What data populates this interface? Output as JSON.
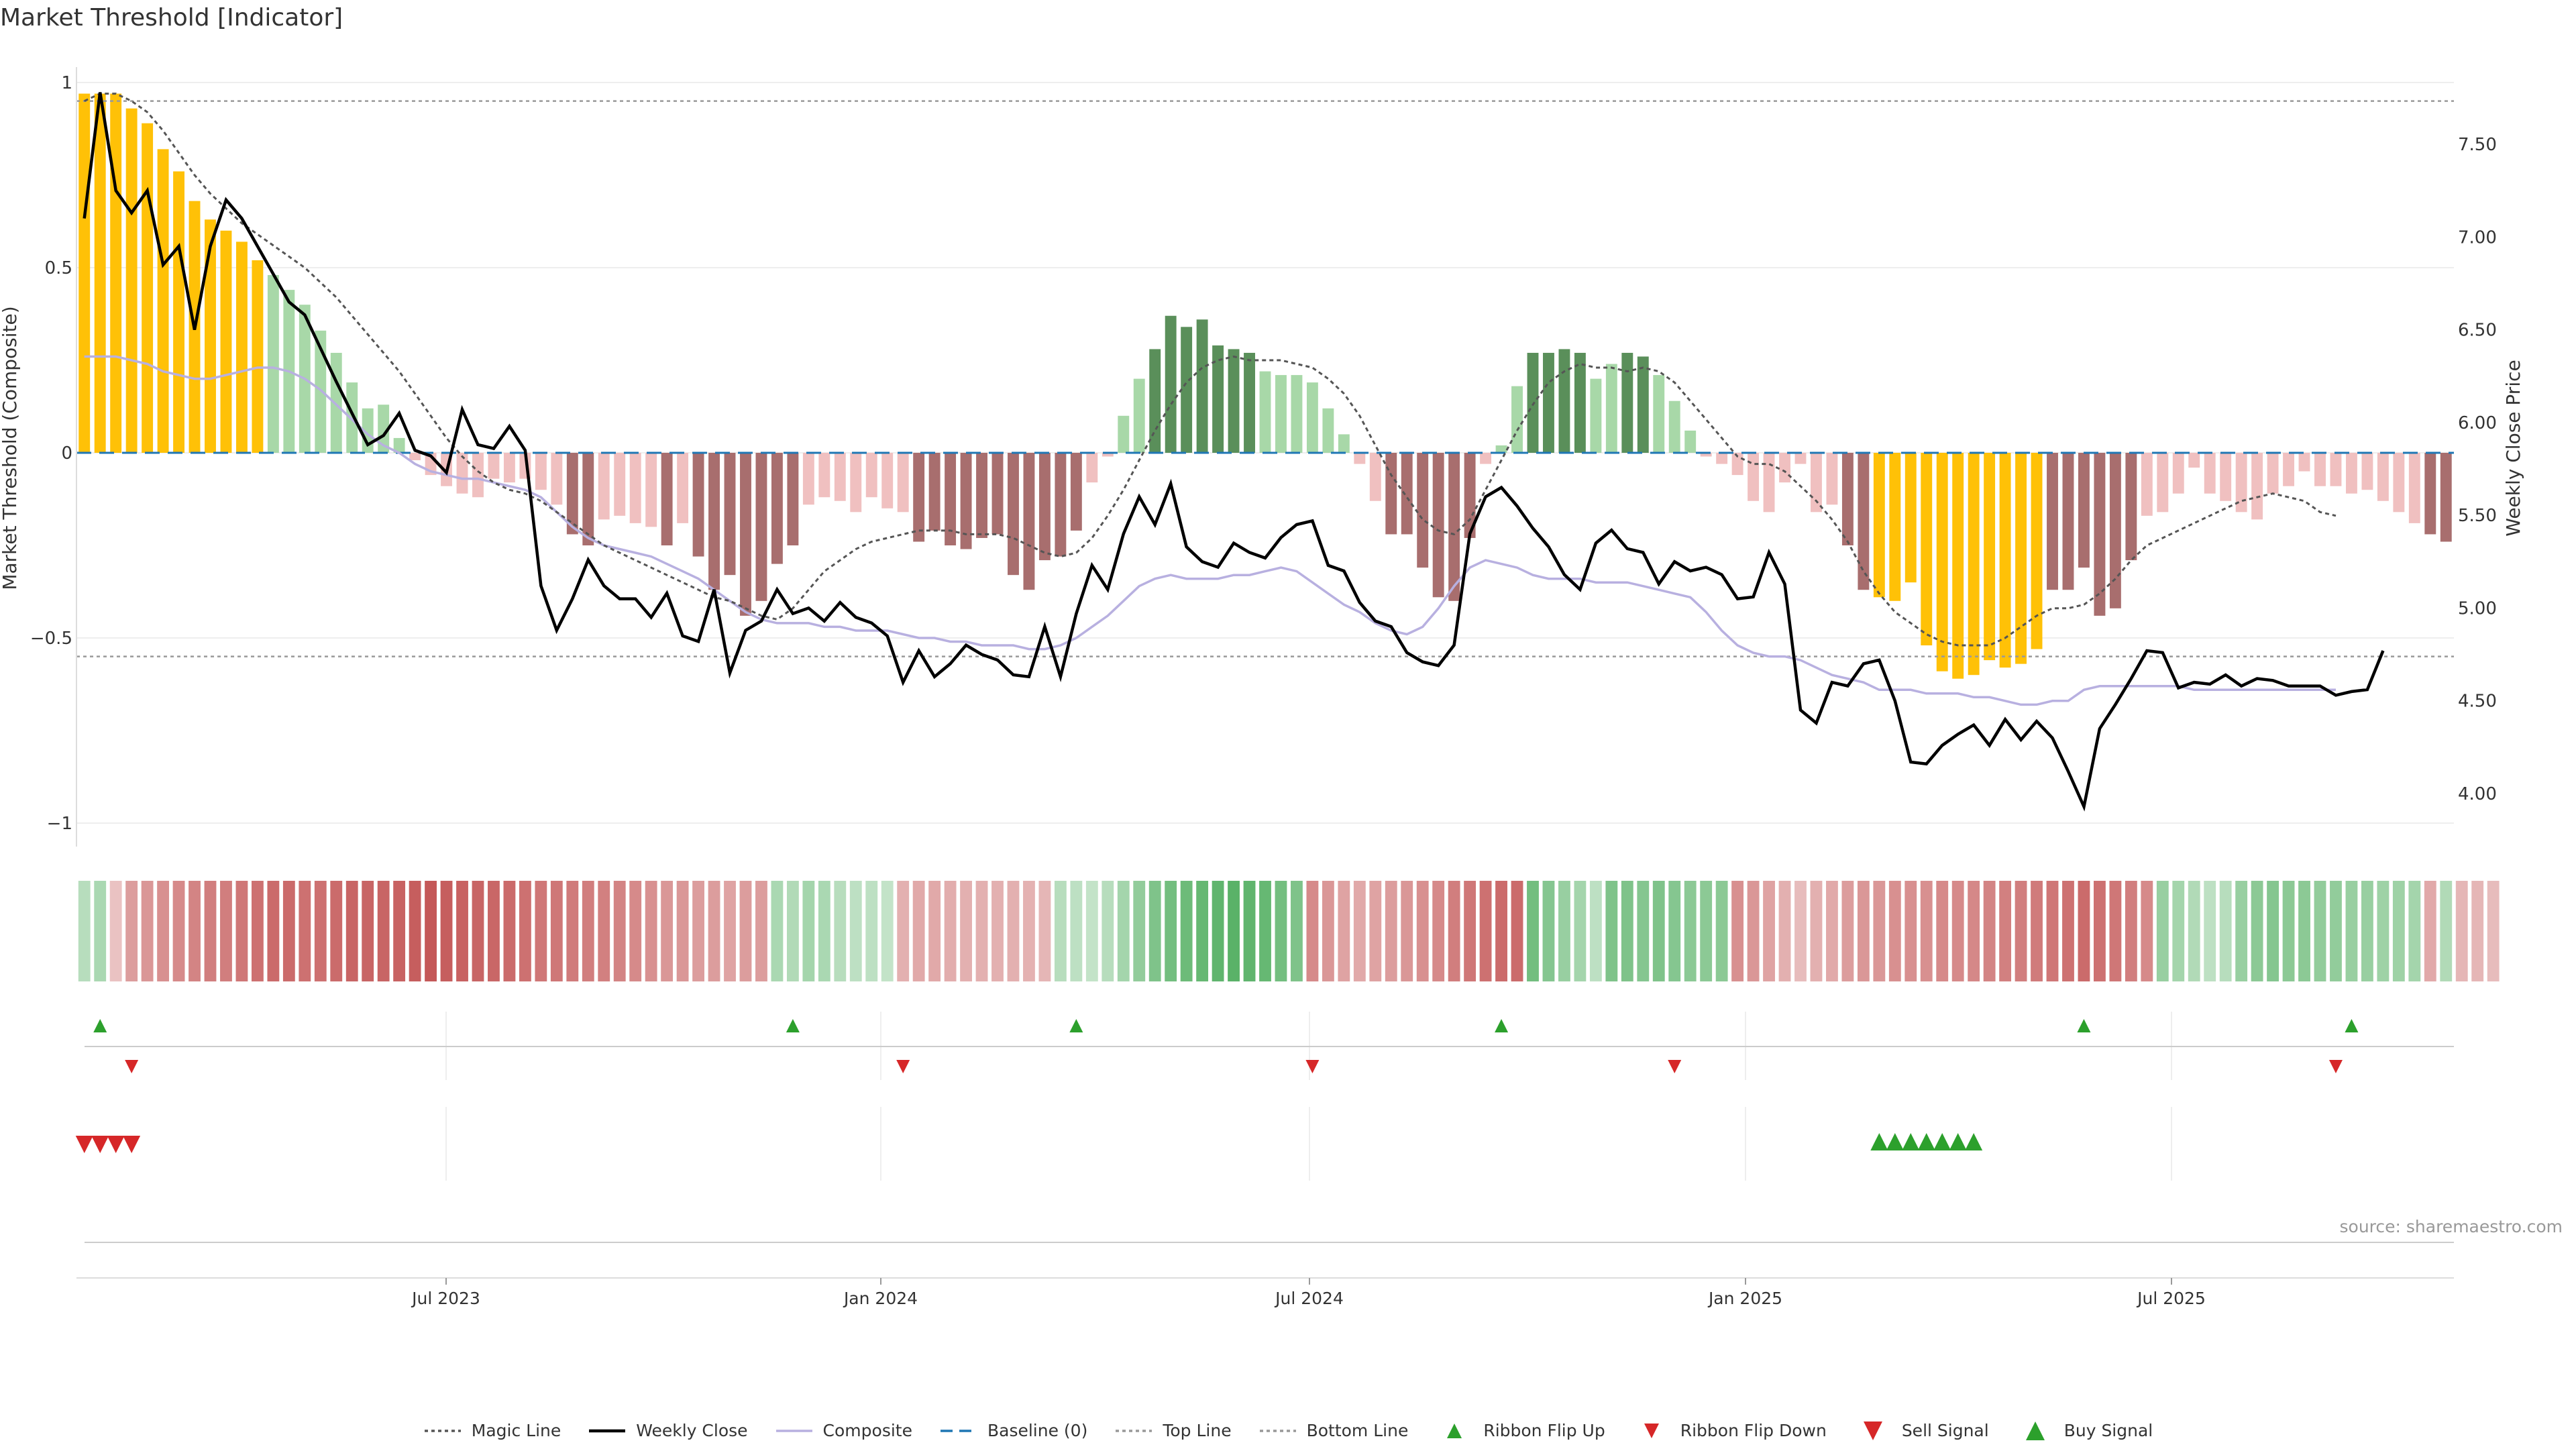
{
  "chart_data": {
    "type": "bar",
    "title": "Market Threshold [Indicator]",
    "ylabel_left": "Market Threshold (Composite)",
    "ylabel_right": "Weekly Close Price",
    "source": "source: sharemaestro.com",
    "ylim_left": [
      -1,
      1
    ],
    "yticks_left": [
      "1",
      "0.5",
      "0",
      "−0.5",
      "−1"
    ],
    "ylim_right": [
      3.85,
      7.8
    ],
    "yticks_right": [
      "7.50",
      "7.00",
      "6.50",
      "6.00",
      "5.50",
      "5.00",
      "4.50",
      "4.00"
    ],
    "xticks": [
      "Jul 2023",
      "Jan 2024",
      "Jul 2024",
      "Jan 2025",
      "Jul 2025"
    ],
    "top_line": 0.95,
    "bottom_line": -0.55,
    "composite_bars": [
      0.97,
      0.97,
      0.97,
      0.93,
      0.89,
      0.82,
      0.76,
      0.68,
      0.63,
      0.6,
      0.57,
      0.52,
      0.48,
      0.44,
      0.4,
      0.33,
      0.27,
      0.19,
      0.12,
      0.13,
      0.04,
      -0.02,
      -0.06,
      -0.09,
      -0.11,
      -0.12,
      -0.07,
      -0.08,
      -0.07,
      -0.1,
      -0.14,
      -0.22,
      -0.25,
      -0.18,
      -0.17,
      -0.19,
      -0.2,
      -0.25,
      -0.19,
      -0.28,
      -0.37,
      -0.33,
      -0.44,
      -0.4,
      -0.3,
      -0.25,
      -0.14,
      -0.12,
      -0.13,
      -0.16,
      -0.12,
      -0.15,
      -0.16,
      -0.24,
      -0.21,
      -0.25,
      -0.26,
      -0.23,
      -0.22,
      -0.33,
      -0.37,
      -0.29,
      -0.28,
      -0.21,
      -0.08,
      -0.01,
      0.1,
      0.2,
      0.28,
      0.37,
      0.34,
      0.36,
      0.29,
      0.28,
      0.27,
      0.22,
      0.21,
      0.21,
      0.19,
      0.12,
      0.05,
      -0.03,
      -0.13,
      -0.22,
      -0.22,
      -0.31,
      -0.39,
      -0.4,
      -0.23,
      -0.03,
      0.02,
      0.18,
      0.27,
      0.27,
      0.28,
      0.27,
      0.2,
      0.24,
      0.27,
      0.26,
      0.21,
      0.14,
      0.06,
      -0.01,
      -0.03,
      -0.06,
      -0.13,
      -0.16,
      -0.08,
      -0.03,
      -0.16,
      -0.14,
      -0.25,
      -0.37,
      -0.39,
      -0.4,
      -0.35,
      -0.52,
      -0.59,
      -0.61,
      -0.6,
      -0.56,
      -0.58,
      -0.57,
      -0.53,
      -0.37,
      -0.37,
      -0.31,
      -0.44,
      -0.42,
      -0.29,
      -0.17,
      -0.16,
      -0.11,
      -0.04,
      -0.11,
      -0.13,
      -0.16,
      -0.18,
      -0.11,
      -0.09,
      -0.05,
      -0.09,
      -0.09,
      -0.11,
      -0.1,
      -0.13,
      -0.16,
      -0.19,
      -0.22,
      -0.24
    ],
    "bar_colors": {
      "strong_pos": "#ffc107",
      "pos": "#a8d8a8",
      "pos_dark": "#5a8f5a",
      "neg": "#f0c0c0",
      "neg_dark": "#a86e6e"
    },
    "weekly_close": [
      7.1,
      7.78,
      7.25,
      7.13,
      7.25,
      6.85,
      6.95,
      6.5,
      6.95,
      7.2,
      7.1,
      6.95,
      6.8,
      6.65,
      6.58,
      6.4,
      6.22,
      6.05,
      5.88,
      5.93,
      6.05,
      5.85,
      5.82,
      5.73,
      6.07,
      5.88,
      5.86,
      5.98,
      5.85,
      5.12,
      4.88,
      5.05,
      5.26,
      5.12,
      5.05,
      5.05,
      4.95,
      5.08,
      4.85,
      4.82,
      5.1,
      4.65,
      4.88,
      4.93,
      5.1,
      4.97,
      5.0,
      4.93,
      5.03,
      4.95,
      4.92,
      4.85,
      4.6,
      4.77,
      4.63,
      4.7,
      4.8,
      4.75,
      4.72,
      4.64,
      4.63,
      4.9,
      4.63,
      4.97,
      5.23,
      5.1,
      5.4,
      5.6,
      5.45,
      5.67,
      5.33,
      5.25,
      5.22,
      5.35,
      5.3,
      5.27,
      5.38,
      5.45,
      5.47,
      5.23,
      5.2,
      5.03,
      4.93,
      4.9,
      4.76,
      4.71,
      4.69,
      4.8,
      5.4,
      5.6,
      5.65,
      5.55,
      5.43,
      5.33,
      5.18,
      5.1,
      5.35,
      5.42,
      5.32,
      5.3,
      5.13,
      5.25,
      5.2,
      5.22,
      5.18,
      5.05,
      5.06,
      5.3,
      5.13,
      4.45,
      4.38,
      4.6,
      4.58,
      4.7,
      4.72,
      4.5,
      4.17,
      4.16,
      4.26,
      4.32,
      4.37,
      4.26,
      4.4,
      4.29,
      4.39,
      4.3,
      4.12,
      3.93,
      4.35,
      4.48,
      4.62,
      4.77,
      4.76,
      4.57,
      4.6,
      4.59,
      4.64,
      4.58,
      4.62,
      4.61,
      4.58,
      4.58,
      4.58,
      4.53,
      4.55,
      4.56,
      4.77
    ],
    "magic_line": [
      0.95,
      0.97,
      0.97,
      0.95,
      0.92,
      0.87,
      0.81,
      0.75,
      0.7,
      0.66,
      0.62,
      0.59,
      0.56,
      0.53,
      0.5,
      0.46,
      0.42,
      0.37,
      0.32,
      0.27,
      0.22,
      0.16,
      0.1,
      0.04,
      -0.01,
      -0.05,
      -0.08,
      -0.1,
      -0.11,
      -0.13,
      -0.16,
      -0.19,
      -0.22,
      -0.25,
      -0.27,
      -0.29,
      -0.31,
      -0.33,
      -0.35,
      -0.37,
      -0.39,
      -0.4,
      -0.42,
      -0.44,
      -0.45,
      -0.42,
      -0.37,
      -0.32,
      -0.29,
      -0.26,
      -0.24,
      -0.23,
      -0.22,
      -0.21,
      -0.21,
      -0.21,
      -0.22,
      -0.22,
      -0.22,
      -0.23,
      -0.25,
      -0.27,
      -0.28,
      -0.27,
      -0.23,
      -0.17,
      -0.1,
      -0.02,
      0.06,
      0.13,
      0.19,
      0.23,
      0.25,
      0.26,
      0.25,
      0.25,
      0.25,
      0.24,
      0.23,
      0.2,
      0.16,
      0.1,
      0.02,
      -0.06,
      -0.12,
      -0.18,
      -0.21,
      -0.22,
      -0.18,
      -0.1,
      -0.02,
      0.06,
      0.13,
      0.19,
      0.22,
      0.24,
      0.23,
      0.23,
      0.22,
      0.23,
      0.22,
      0.19,
      0.14,
      0.09,
      0.04,
      -0.01,
      -0.03,
      -0.03,
      -0.05,
      -0.09,
      -0.13,
      -0.18,
      -0.24,
      -0.32,
      -0.38,
      -0.43,
      -0.46,
      -0.49,
      -0.51,
      -0.52,
      -0.52,
      -0.52,
      -0.5,
      -0.47,
      -0.44,
      -0.42,
      -0.42,
      -0.41,
      -0.38,
      -0.34,
      -0.29,
      -0.25,
      -0.23,
      -0.21,
      -0.19,
      -0.17,
      -0.15,
      -0.13,
      -0.12,
      -0.11,
      -0.12,
      -0.13,
      -0.16,
      -0.17
    ],
    "composite_line": [
      0.26,
      0.26,
      0.26,
      0.25,
      0.24,
      0.22,
      0.21,
      0.2,
      0.2,
      0.21,
      0.22,
      0.23,
      0.23,
      0.22,
      0.2,
      0.17,
      0.13,
      0.09,
      0.05,
      0.02,
      0.0,
      -0.03,
      -0.05,
      -0.06,
      -0.07,
      -0.07,
      -0.08,
      -0.09,
      -0.1,
      -0.12,
      -0.16,
      -0.2,
      -0.23,
      -0.25,
      -0.26,
      -0.27,
      -0.28,
      -0.3,
      -0.32,
      -0.34,
      -0.37,
      -0.4,
      -0.43,
      -0.45,
      -0.46,
      -0.46,
      -0.46,
      -0.47,
      -0.47,
      -0.48,
      -0.48,
      -0.48,
      -0.49,
      -0.5,
      -0.5,
      -0.51,
      -0.51,
      -0.52,
      -0.52,
      -0.52,
      -0.53,
      -0.53,
      -0.52,
      -0.5,
      -0.47,
      -0.44,
      -0.4,
      -0.36,
      -0.34,
      -0.33,
      -0.34,
      -0.34,
      -0.34,
      -0.33,
      -0.33,
      -0.32,
      -0.31,
      -0.32,
      -0.35,
      -0.38,
      -0.41,
      -0.43,
      -0.46,
      -0.48,
      -0.49,
      -0.47,
      -0.42,
      -0.36,
      -0.31,
      -0.29,
      -0.3,
      -0.31,
      -0.33,
      -0.34,
      -0.34,
      -0.34,
      -0.35,
      -0.35,
      -0.35,
      -0.36,
      -0.37,
      -0.38,
      -0.39,
      -0.43,
      -0.48,
      -0.52,
      -0.54,
      -0.55,
      -0.55,
      -0.56,
      -0.58,
      -0.6,
      -0.61,
      -0.62,
      -0.64,
      -0.64,
      -0.64,
      -0.65,
      -0.65,
      -0.65,
      -0.66,
      -0.66,
      -0.67,
      -0.68,
      -0.68,
      -0.67,
      -0.67,
      -0.64,
      -0.63,
      -0.63,
      -0.63,
      -0.63,
      -0.63,
      -0.63,
      -0.64,
      -0.64,
      -0.64,
      -0.64,
      -0.64,
      -0.64,
      -0.64,
      -0.64,
      -0.64,
      -0.64
    ],
    "ribbon": [
      0.25,
      0.35,
      0.15,
      0.45,
      0.5,
      0.55,
      0.6,
      0.65,
      0.7,
      0.7,
      0.75,
      0.8,
      0.85,
      0.85,
      0.8,
      0.8,
      0.85,
      0.9,
      0.9,
      0.9,
      0.92,
      0.95,
      1.0,
      0.95,
      0.92,
      0.9,
      0.88,
      0.85,
      0.8,
      0.75,
      0.75,
      0.72,
      0.7,
      0.68,
      0.65,
      0.6,
      0.55,
      0.5,
      0.5,
      0.45,
      0.45,
      0.4,
      0.45,
      0.45,
      0.35,
      0.3,
      0.4,
      0.35,
      0.25,
      0.2,
      0.2,
      0.15,
      0.3,
      0.35,
      0.35,
      0.32,
      0.3,
      0.3,
      0.3,
      0.3,
      0.28,
      0.25,
      0.25,
      0.2,
      0.15,
      0.25,
      0.4,
      0.55,
      0.7,
      0.8,
      0.85,
      0.9,
      0.95,
      1.0,
      0.95,
      0.9,
      0.8,
      0.7,
      0.6,
      0.5,
      0.4,
      0.35,
      0.4,
      0.45,
      0.5,
      0.55,
      0.6,
      0.7,
      0.75,
      0.8,
      0.85,
      0.85,
      0.8,
      0.65,
      0.5,
      0.4,
      0.2,
      0.7,
      0.7,
      0.65,
      0.7,
      0.65,
      0.6,
      0.6,
      0.6,
      0.55,
      0.5,
      0.4,
      0.3,
      0.2,
      0.3,
      0.35,
      0.45,
      0.5,
      0.5,
      0.55,
      0.55,
      0.55,
      0.6,
      0.6,
      0.62,
      0.65,
      0.68,
      0.7,
      0.72,
      0.75,
      0.8,
      0.85,
      0.8,
      0.75,
      0.7,
      0.6,
      0.5,
      0.4,
      0.3,
      0.2,
      0.25,
      0.5,
      0.6,
      0.65,
      0.6,
      0.6,
      0.55,
      0.55,
      0.5,
      0.5,
      0.45,
      0.45,
      0.4,
      0.35,
      0.3,
      0.25,
      0.25,
      0.2
    ],
    "ribbon_sign": [
      1,
      1,
      -1,
      -1,
      -1,
      -1,
      -1,
      -1,
      -1,
      -1,
      -1,
      -1,
      -1,
      -1,
      -1,
      -1,
      -1,
      -1,
      -1,
      -1,
      -1,
      -1,
      -1,
      -1,
      -1,
      -1,
      -1,
      -1,
      -1,
      -1,
      -1,
      -1,
      -1,
      -1,
      -1,
      -1,
      -1,
      -1,
      -1,
      -1,
      -1,
      -1,
      -1,
      -1,
      1,
      1,
      1,
      1,
      1,
      1,
      1,
      1,
      -1,
      -1,
      -1,
      -1,
      -1,
      -1,
      -1,
      -1,
      -1,
      -1,
      1,
      1,
      1,
      1,
      1,
      1,
      1,
      1,
      1,
      1,
      1,
      1,
      1,
      1,
      1,
      1,
      -1,
      -1,
      -1,
      -1,
      -1,
      -1,
      -1,
      -1,
      -1,
      -1,
      -1,
      -1,
      -1,
      -1,
      1,
      1,
      1,
      1,
      1,
      1,
      1,
      1,
      1,
      1,
      1,
      1,
      1,
      -1,
      -1,
      -1,
      -1,
      -1,
      -1,
      -1,
      -1,
      -1,
      -1,
      -1,
      -1,
      -1,
      -1,
      -1,
      -1,
      -1,
      -1,
      -1,
      -1,
      -1,
      -1,
      -1,
      -1,
      -1,
      -1,
      -1,
      1,
      1,
      1,
      1,
      1,
      1,
      1,
      1,
      1,
      1,
      1,
      1,
      1,
      1,
      1,
      1,
      1,
      -1,
      1
    ],
    "ribbon_flip_up": [
      1,
      45,
      63,
      90,
      127,
      144
    ],
    "ribbon_flip_down": [
      3,
      52,
      78,
      101,
      143
    ],
    "sell_signals": [
      0,
      1,
      2,
      3
    ],
    "buy_signals": [
      114,
      115,
      116,
      117,
      118,
      119,
      120
    ],
    "legend": [
      {
        "name": "Magic Line",
        "style": "dotted",
        "color": "#555555"
      },
      {
        "name": "Weekly Close",
        "style": "solid",
        "color": "#000000"
      },
      {
        "name": "Composite",
        "style": "solid",
        "color": "#b8b0e0"
      },
      {
        "name": "Baseline (0)",
        "style": "dashed",
        "color": "#1f77b4"
      },
      {
        "name": "Top Line",
        "style": "dotted",
        "color": "#999999"
      },
      {
        "name": "Bottom Line",
        "style": "dotted",
        "color": "#999999"
      },
      {
        "name": "Ribbon Flip Up",
        "style": "tri-up",
        "color": "#2ca02c"
      },
      {
        "name": "Ribbon Flip Down",
        "style": "tri-down",
        "color": "#d62728"
      },
      {
        "name": "Sell Signal",
        "style": "tri-down-big",
        "color": "#d62728"
      },
      {
        "name": "Buy Signal",
        "style": "tri-up-big",
        "color": "#2ca02c"
      }
    ]
  }
}
